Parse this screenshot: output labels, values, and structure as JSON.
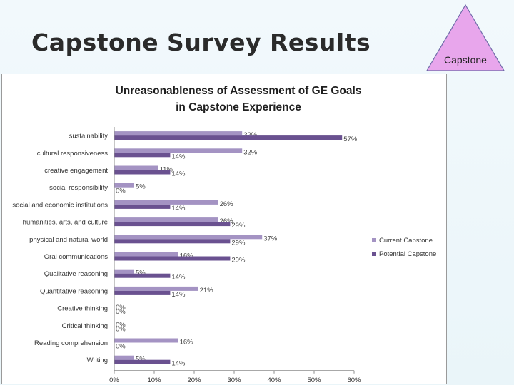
{
  "slide": {
    "title": "Capstone Survey Results",
    "badge_label": "Capstone",
    "badge_fill": "#e8a6ec",
    "badge_stroke": "#6e6aa8"
  },
  "chart_data": {
    "type": "bar",
    "orientation": "horizontal",
    "title": "Unreasonableness of Assessment of GE Goals in Capstone Experience",
    "title_lines": [
      "Unreasonableness of Assessment of GE Goals",
      "in Capstone Experience"
    ],
    "categories": [
      "sustainability",
      "cultural responsiveness",
      "creative engagement",
      "social responsibility",
      "social and economic institutions",
      "humanities, arts, and culture",
      "physical and natural world",
      "Oral communications",
      "Qualitative reasoning",
      "Quantitative reasoning",
      "Creative thinking",
      "Critical thinking",
      "Reading comprehension",
      "Writing"
    ],
    "series": [
      {
        "name": "Current Capstone",
        "color": "#a493c3",
        "values": [
          32,
          32,
          11,
          5,
          26,
          26,
          37,
          16,
          5,
          21,
          0,
          0,
          16,
          5
        ]
      },
      {
        "name": "Potential Capstone",
        "color": "#6a5190",
        "values": [
          57,
          14,
          14,
          0,
          14,
          29,
          29,
          29,
          14,
          14,
          0,
          0,
          0,
          14
        ]
      }
    ],
    "xlim": [
      0,
      60
    ],
    "xticks": [
      0,
      10,
      20,
      30,
      40,
      50,
      60
    ],
    "value_suffix": "%",
    "legend_position": "right",
    "grid": false
  }
}
